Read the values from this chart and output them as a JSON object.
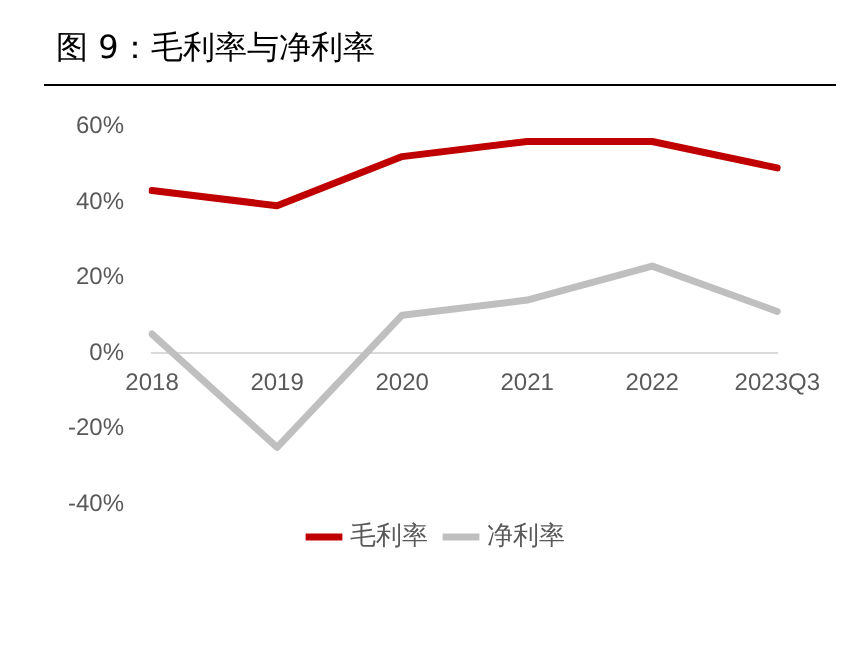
{
  "chart_data": {
    "type": "line",
    "title": "图 9：毛利率与净利率",
    "categories": [
      "2018",
      "2019",
      "2020",
      "2021",
      "2022",
      "2023Q3"
    ],
    "series": [
      {
        "name": "毛利率",
        "color": "#c00000",
        "values": [
          43,
          39,
          52,
          56,
          56,
          49
        ]
      },
      {
        "name": "净利率",
        "color": "#bfbfbf",
        "values": [
          5,
          -25,
          10,
          14,
          23,
          11
        ]
      }
    ],
    "ylim": [
      -40,
      60
    ],
    "yticks": [
      {
        "value": -40,
        "label": "-40%"
      },
      {
        "value": -20,
        "label": "-20%"
      },
      {
        "value": 0,
        "label": "0%"
      },
      {
        "value": 20,
        "label": "20%"
      },
      {
        "value": 40,
        "label": "40%"
      },
      {
        "value": 60,
        "label": "60%"
      }
    ],
    "grid": false,
    "legend": "bottom",
    "marker": "none",
    "line_style": "solid"
  }
}
